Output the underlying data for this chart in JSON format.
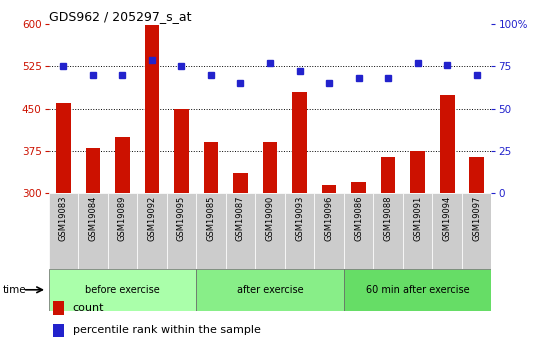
{
  "title": "GDS962 / 205297_s_at",
  "samples": [
    "GSM19083",
    "GSM19084",
    "GSM19089",
    "GSM19092",
    "GSM19095",
    "GSM19085",
    "GSM19087",
    "GSM19090",
    "GSM19093",
    "GSM19096",
    "GSM19086",
    "GSM19088",
    "GSM19091",
    "GSM19094",
    "GSM19097"
  ],
  "counts": [
    460,
    380,
    400,
    598,
    450,
    390,
    335,
    390,
    480,
    315,
    320,
    365,
    375,
    475,
    365
  ],
  "percentiles": [
    75,
    70,
    70,
    79,
    75,
    70,
    65,
    77,
    72,
    65,
    68,
    68,
    77,
    76,
    70
  ],
  "groups": [
    {
      "label": "before exercise",
      "start": 0,
      "end": 5,
      "color": "#aaffaa"
    },
    {
      "label": "after exercise",
      "start": 5,
      "end": 10,
      "color": "#88ee88"
    },
    {
      "label": "60 min after exercise",
      "start": 10,
      "end": 15,
      "color": "#66dd66"
    }
  ],
  "ylim_left": [
    300,
    600
  ],
  "ylim_right": [
    0,
    100
  ],
  "yticks_left": [
    300,
    375,
    450,
    525,
    600
  ],
  "yticks_right": [
    0,
    25,
    50,
    75,
    100
  ],
  "bar_color": "#cc1100",
  "dot_color": "#2222cc",
  "legend_items": [
    "count",
    "percentile rank within the sample"
  ]
}
